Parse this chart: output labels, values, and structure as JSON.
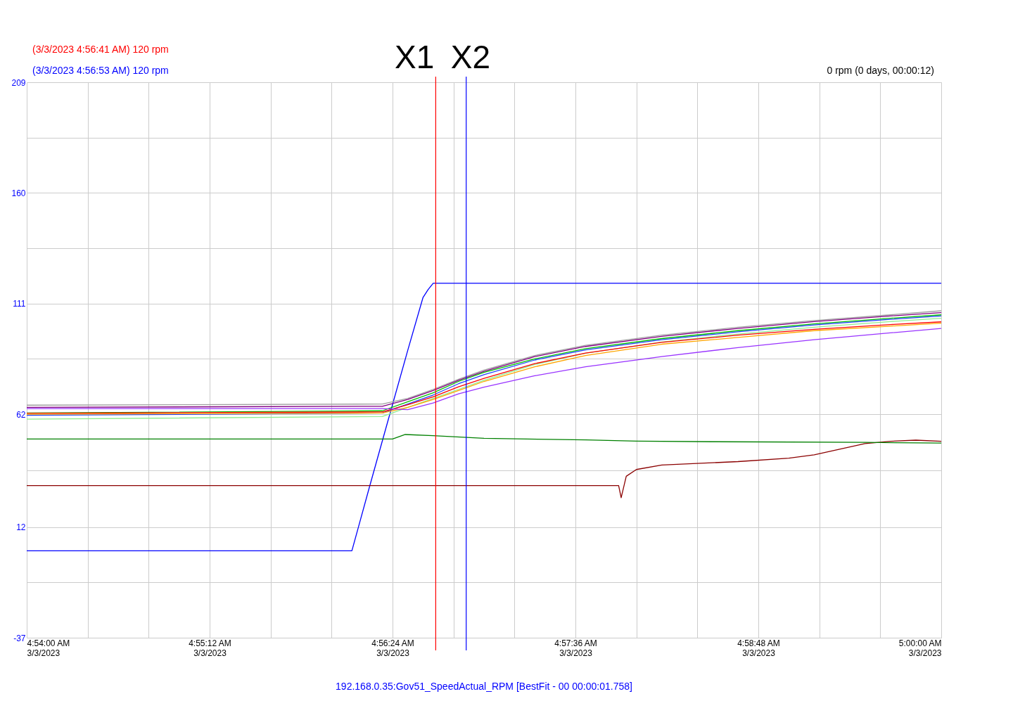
{
  "chart_data": {
    "type": "line",
    "annotations": [
      "(3/3/2023 4:56:41 AM) 120 rpm",
      "(3/3/2023 4:56:53 AM) 120 rpm",
      "0 rpm (0 days, 00:00:12)",
      "192.168.0.35:Gov51_SpeedActual_RPM [BestFit - 00 00:00:01.758]"
    ],
    "x": [
      "2023-03-03T04:54:00",
      "2023-03-03T04:56:20",
      "2023-03-03T04:56:30",
      "2023-03-03T04:56:40",
      "2023-03-03T04:56:50",
      "2023-03-03T04:57:00",
      "2023-03-03T04:57:20",
      "2023-03-03T04:57:40",
      "2023-03-03T04:58:10",
      "2023-03-03T04:58:40",
      "2023-03-03T04:59:10",
      "2023-03-03T04:59:40",
      "2023-03-03T05:00:00"
    ],
    "series": [
      {
        "color": "#0000ff",
        "x": [
          "2023-03-03T04:54:00",
          "2023-03-03T04:56:08",
          "2023-03-03T04:56:15",
          "2023-03-03T04:56:22",
          "2023-03-03T04:56:30",
          "2023-03-03T04:56:36",
          "2023-03-03T04:56:38",
          "2023-03-03T04:56:40",
          "2023-03-03T05:00:00"
        ],
        "values": [
          1.5,
          1.5,
          30.1,
          58.3,
          90.3,
          113.7,
          117.2,
          120,
          120
        ]
      },
      {
        "color": "#8b0000",
        "x": [
          "2023-03-03T04:54:00",
          "2023-03-03T04:57:53",
          "2023-03-03T04:57:54",
          "2023-03-03T04:57:56",
          "2023-03-03T04:58:00",
          "2023-03-03T04:58:10",
          "2023-03-03T04:58:40",
          "2023-03-03T04:59:00",
          "2023-03-03T04:59:10",
          "2023-03-03T04:59:20",
          "2023-03-03T04:59:30",
          "2023-03-03T04:59:40",
          "2023-03-03T04:59:50",
          "2023-03-03T05:00:00"
        ],
        "values": [
          30.4,
          30.4,
          25,
          34.5,
          37.5,
          39.5,
          41,
          42.5,
          44,
          46.5,
          49,
          50,
          50.5,
          50
        ]
      },
      {
        "color": "#008000",
        "x": [
          "2023-03-03T04:54:00",
          "2023-03-03T04:56:24",
          "2023-03-03T04:56:29",
          "2023-03-03T04:56:40",
          "2023-03-03T04:57:00",
          "2023-03-03T04:57:40",
          "2023-03-03T04:58:00",
          "2023-03-03T04:58:30",
          "2023-03-03T04:59:30",
          "2023-03-03T05:00:00"
        ],
        "values": [
          51,
          51,
          53,
          52.5,
          51.3,
          50.6,
          50.1,
          49.8,
          49.5,
          49.2
        ]
      },
      {
        "color": "#a0a0a0",
        "values": [
          66,
          66.5,
          69,
          73,
          77.5,
          81.5,
          88,
          92.5,
          97,
          100.5,
          103.5,
          106,
          107.8
        ]
      },
      {
        "color": "#800080",
        "values": [
          65,
          65.5,
          68.5,
          72.5,
          77,
          81,
          87.5,
          92,
          96.5,
          100,
          103,
          105.5,
          107
        ]
      },
      {
        "color": "#00c000",
        "values": [
          62.5,
          63.5,
          67.5,
          71.5,
          76.5,
          80.5,
          86.5,
          91,
          95.5,
          99,
          102,
          104.5,
          106
        ]
      },
      {
        "color": "#2040ff",
        "values": [
          61.5,
          62.5,
          66.5,
          70.5,
          75.5,
          79.5,
          86,
          90.5,
          95,
          98.5,
          101.5,
          104,
          105.5
        ]
      },
      {
        "color": "#90ee90",
        "values": [
          59.8,
          61,
          65,
          69,
          73,
          77,
          84,
          89,
          94,
          97.5,
          100.5,
          103,
          104.5
        ]
      },
      {
        "color": "#ff0000",
        "values": [
          62.4,
          63,
          66.2,
          69.7,
          74.1,
          77.9,
          84.4,
          89.1,
          93.8,
          97,
          99.6,
          101.7,
          102.9
        ]
      },
      {
        "color": "#ffa500",
        "values": [
          62,
          62.5,
          65,
          68.5,
          72.5,
          76.5,
          83,
          88,
          93,
          96,
          99,
          101,
          102.3
        ]
      },
      {
        "color": "#9933ff",
        "values": [
          64.5,
          64.5,
          64,
          67,
          71,
          74,
          79,
          83,
          87.5,
          91.5,
          95,
          98,
          100
        ]
      }
    ],
    "xlim": [
      "2023-03-03T04:54:00",
      "2023-03-03T05:00:00"
    ],
    "xticks": [
      {
        "value": "2023-03-03T04:54:00",
        "label": "4:54:00 AM\n3/3/2023"
      },
      {
        "value": "2023-03-03T04:54:24",
        "label": null
      },
      {
        "value": "2023-03-03T04:54:48",
        "label": null
      },
      {
        "value": "2023-03-03T04:55:12",
        "label": "4:55:12 AM\n3/3/2023"
      },
      {
        "value": "2023-03-03T04:55:36",
        "label": null
      },
      {
        "value": "2023-03-03T04:56:00",
        "label": null
      },
      {
        "value": "2023-03-03T04:56:24",
        "label": "4:56:24 AM\n3/3/2023"
      },
      {
        "value": "2023-03-03T04:56:48",
        "label": null
      },
      {
        "value": "2023-03-03T04:57:12",
        "label": null
      },
      {
        "value": "2023-03-03T04:57:36",
        "label": "4:57:36 AM\n3/3/2023"
      },
      {
        "value": "2023-03-03T04:58:00",
        "label": null
      },
      {
        "value": "2023-03-03T04:58:24",
        "label": null
      },
      {
        "value": "2023-03-03T04:58:48",
        "label": "4:58:48 AM\n3/3/2023"
      },
      {
        "value": "2023-03-03T04:59:12",
        "label": null
      },
      {
        "value": "2023-03-03T04:59:36",
        "label": null
      },
      {
        "value": "2023-03-03T05:00:00",
        "label": "5:00:00 AM\n3/3/2023"
      }
    ],
    "ylim": [
      -37,
      209
    ],
    "yticks": [
      -37,
      {
        "value": -12.5,
        "label": null
      },
      12,
      {
        "value": 37,
        "label": null
      },
      62,
      {
        "value": 86.5,
        "label": null
      },
      111,
      {
        "value": 135.5,
        "label": null
      },
      160,
      {
        "value": 184.5,
        "label": null
      },
      209
    ],
    "ref_lines": [
      {
        "axis": "x",
        "value": "2023-03-03T04:56:41",
        "label": "X1",
        "color": "#ff0000"
      },
      {
        "axis": "x",
        "value": "2023-03-03T04:56:53",
        "label": "X2",
        "color": "#0000ff"
      }
    ],
    "grid": true,
    "marker": "none",
    "line_style": "solid"
  }
}
